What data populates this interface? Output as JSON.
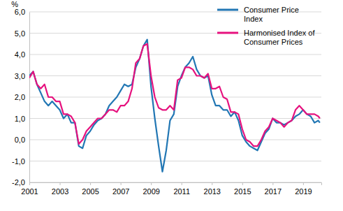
{
  "chart_data": {
    "type": "line",
    "ylabel": "%",
    "x": [
      2001,
      2001.25,
      2001.5,
      2001.75,
      2002,
      2002.25,
      2002.5,
      2002.75,
      2003,
      2003.25,
      2003.5,
      2003.75,
      2004,
      2004.25,
      2004.5,
      2004.75,
      2005,
      2005.25,
      2005.5,
      2005.75,
      2006,
      2006.25,
      2006.5,
      2006.75,
      2007,
      2007.25,
      2007.5,
      2007.75,
      2008,
      2008.25,
      2008.5,
      2008.75,
      2009,
      2009.25,
      2009.5,
      2009.75,
      2010,
      2010.25,
      2010.5,
      2010.75,
      2011,
      2011.25,
      2011.5,
      2011.75,
      2012,
      2012.25,
      2012.5,
      2012.75,
      2013,
      2013.25,
      2013.5,
      2013.75,
      2014,
      2014.25,
      2014.5,
      2014.75,
      2015,
      2015.25,
      2015.5,
      2015.75,
      2016,
      2016.25,
      2016.5,
      2016.75,
      2017,
      2017.25,
      2017.5,
      2017.75,
      2018,
      2018.25,
      2018.5,
      2018.75,
      2019,
      2019.25,
      2019.5,
      2019.75,
      2020,
      2020.1
    ],
    "series": [
      {
        "name": "Consumer Price Index",
        "color": "#2277b4",
        "values": [
          3.0,
          3.2,
          2.6,
          2.2,
          1.8,
          1.6,
          1.8,
          1.6,
          1.4,
          1.0,
          1.2,
          0.8,
          0.8,
          -0.3,
          -0.4,
          0.2,
          0.4,
          0.7,
          0.9,
          1.0,
          1.2,
          1.6,
          1.8,
          2.0,
          2.3,
          2.6,
          2.5,
          2.6,
          3.4,
          3.8,
          4.4,
          4.7,
          2.5,
          1.0,
          -0.3,
          -1.5,
          -0.5,
          0.9,
          1.2,
          2.5,
          3.0,
          3.4,
          3.6,
          3.9,
          3.3,
          3.0,
          2.9,
          3.0,
          2.1,
          1.6,
          1.6,
          1.4,
          1.4,
          1.1,
          1.3,
          0.9,
          0.2,
          -0.1,
          -0.3,
          -0.4,
          -0.5,
          -0.1,
          0.3,
          0.5,
          1.0,
          0.8,
          0.8,
          0.7,
          0.8,
          0.9,
          1.1,
          1.2,
          1.4,
          1.2,
          1.1,
          0.8,
          0.9,
          0.8
        ]
      },
      {
        "name": "Harmonised Index of Consumer Prices",
        "color": "#e6127e",
        "values": [
          2.9,
          3.2,
          2.6,
          2.4,
          2.6,
          2.0,
          2.0,
          1.8,
          1.8,
          1.2,
          1.2,
          1.1,
          0.8,
          -0.2,
          0.0,
          0.4,
          0.6,
          0.8,
          1.0,
          1.0,
          1.2,
          1.4,
          1.4,
          1.3,
          1.6,
          1.6,
          1.8,
          2.4,
          3.6,
          3.8,
          4.4,
          4.5,
          3.0,
          2.0,
          1.5,
          1.4,
          1.4,
          1.6,
          1.4,
          2.8,
          2.9,
          3.4,
          3.4,
          3.3,
          3.0,
          3.0,
          2.9,
          3.1,
          2.4,
          2.4,
          2.5,
          2.0,
          1.9,
          1.3,
          1.3,
          1.2,
          0.5,
          0.0,
          -0.1,
          -0.3,
          -0.3,
          0.0,
          0.4,
          0.6,
          1.0,
          0.9,
          0.8,
          0.6,
          0.8,
          0.9,
          1.4,
          1.6,
          1.4,
          1.2,
          1.2,
          1.2,
          1.1,
          1.0
        ]
      }
    ],
    "xlim": [
      2001,
      2020.2
    ],
    "xticks": [
      2001,
      2003,
      2005,
      2007,
      2009,
      2011,
      2013,
      2015,
      2017,
      2019
    ],
    "ylim": [
      -2,
      6
    ],
    "yticks": [
      {
        "value": -2,
        "label": "-2,0"
      },
      {
        "value": -1,
        "label": "-1,0"
      },
      {
        "value": 0,
        "label": "0,0"
      },
      {
        "value": 1,
        "label": "1,0"
      },
      {
        "value": 2,
        "label": "2,0"
      },
      {
        "value": 3,
        "label": "3,0"
      },
      {
        "value": 4,
        "label": "4,0"
      },
      {
        "value": 5,
        "label": "5,0"
      },
      {
        "value": 6,
        "label": "6,0"
      }
    ],
    "grid": true,
    "legend": "top-right"
  }
}
